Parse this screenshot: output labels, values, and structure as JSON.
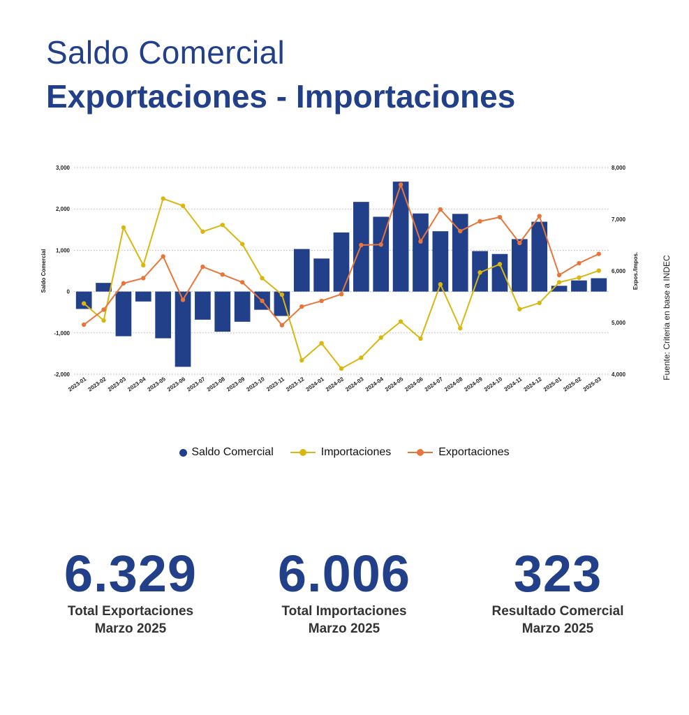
{
  "header": {
    "title_line1": "Saldo Comercial",
    "title_line2": "Exportaciones - Importaciones"
  },
  "source_text": "Fuente: Criteria en base a INDEC",
  "colors": {
    "balance": "#22408a",
    "imports": "#d9b70f",
    "exports": "#e8763a",
    "text_dark": "#22408a"
  },
  "chart_data": {
    "type": "bar",
    "categories": [
      "2023-01",
      "2023-02",
      "2023-03",
      "2023-04",
      "2023-05",
      "2023-06",
      "2023-07",
      "2023-08",
      "2023-09",
      "2023-10",
      "2023-11",
      "2023-12",
      "2024-01",
      "2024-02",
      "2024-03",
      "2024-04",
      "2024-05",
      "2024-06",
      "2024-07",
      "2024-08",
      "2024-09",
      "2024-10",
      "2024-11",
      "2024-12",
      "2025-01",
      "2025-02",
      "2025-03"
    ],
    "ylabel_left": "Saldo Comercial",
    "ylabel_right": "Expos./Impos.",
    "ylim_left": [
      -2000,
      3000
    ],
    "ylim_right": [
      4000,
      8000
    ],
    "yticks_left": [
      "3,000",
      "2,000",
      "1,000",
      "0",
      "-1,000",
      "-2,000"
    ],
    "yticks_right": [
      "8,000",
      "7,000",
      "6,000",
      "5,000",
      "4,000"
    ],
    "grid": true,
    "legend_position": "bottom",
    "series": [
      {
        "name": "Saldo Comercial",
        "type": "bar",
        "axis": "left",
        "values": [
          -420,
          210,
          -1080,
          -240,
          -1130,
          -1820,
          -680,
          -970,
          -730,
          -440,
          -590,
          1030,
          800,
          1430,
          2170,
          1810,
          2660,
          1890,
          1460,
          1880,
          980,
          910,
          1270,
          1690,
          140,
          270,
          323
        ]
      },
      {
        "name": "Importaciones",
        "type": "line",
        "axis": "right",
        "values": [
          5370,
          5040,
          6840,
          6110,
          7400,
          7260,
          6760,
          6890,
          6520,
          5860,
          5540,
          4270,
          4600,
          4110,
          4320,
          4710,
          5020,
          4690,
          5740,
          4890,
          5970,
          6130,
          5260,
          5380,
          5780,
          5870,
          6006
        ]
      },
      {
        "name": "Exportaciones",
        "type": "line",
        "axis": "right",
        "values": [
          4960,
          5250,
          5760,
          5860,
          6280,
          5440,
          6080,
          5930,
          5780,
          5420,
          4950,
          5310,
          5420,
          5550,
          6500,
          6510,
          7670,
          6570,
          7190,
          6770,
          6960,
          7040,
          6540,
          7060,
          5920,
          6150,
          6329
        ]
      }
    ]
  },
  "kpis": [
    {
      "value": "6.329",
      "label_line1": "Total Exportaciones",
      "label_line2": "Marzo 2025"
    },
    {
      "value": "6.006",
      "label_line1": "Total Importaciones",
      "label_line2": "Marzo 2025"
    },
    {
      "value": "323",
      "label_line1": "Resultado Comercial",
      "label_line2": "Marzo 2025"
    }
  ]
}
